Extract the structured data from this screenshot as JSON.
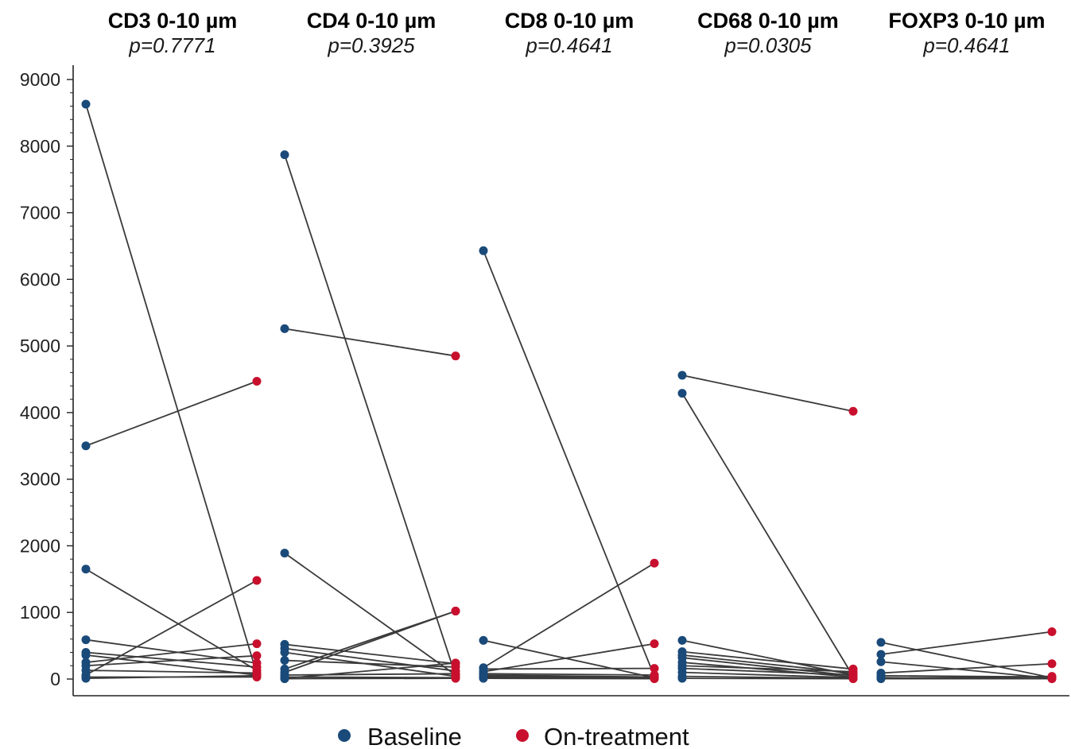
{
  "colors": {
    "baseline": "#1a4a7a",
    "on_treatment": "#c8102e",
    "line": "#3a3a3a",
    "axis": "#222222"
  },
  "chart_data": {
    "type": "paired-line",
    "ylim": [
      0,
      9000
    ],
    "yticks": [
      "0",
      "1000",
      "2000",
      "3000",
      "4000",
      "5000",
      "6000",
      "7000",
      "8000",
      "9000"
    ],
    "grid": false,
    "legend": {
      "position": "bottom-center",
      "entries": [
        {
          "key": "baseline",
          "label": "Baseline"
        },
        {
          "key": "on_treatment",
          "label": "On-treatment"
        }
      ]
    },
    "facets": [
      {
        "title": "CD3 0-10 µm",
        "subtitle": "p=0.7771",
        "pairs": [
          [
            8630,
            80
          ],
          [
            3500,
            4470
          ],
          [
            1650,
            130
          ],
          [
            590,
            240
          ],
          [
            400,
            180
          ],
          [
            360,
            60
          ],
          [
            250,
            530
          ],
          [
            200,
            350
          ],
          [
            130,
            90
          ],
          [
            60,
            1480
          ],
          [
            30,
            30
          ],
          [
            10,
            50
          ]
        ]
      },
      {
        "title": "CD4 0-10 µm",
        "subtitle": "p=0.3925",
        "pairs": [
          [
            7870,
            50
          ],
          [
            5260,
            4850
          ],
          [
            1890,
            60
          ],
          [
            520,
            230
          ],
          [
            460,
            120
          ],
          [
            400,
            40
          ],
          [
            280,
            180
          ],
          [
            150,
            1020
          ],
          [
            100,
            1020
          ],
          [
            60,
            80
          ],
          [
            30,
            20
          ],
          [
            10,
            240
          ],
          [
            5,
            10
          ]
        ]
      },
      {
        "title": "CD8 0-10 µm",
        "subtitle": "p=0.4641",
        "pairs": [
          [
            6430,
            40
          ],
          [
            580,
            20
          ],
          [
            170,
            1740
          ],
          [
            150,
            160
          ],
          [
            110,
            530
          ],
          [
            80,
            60
          ],
          [
            60,
            30
          ],
          [
            40,
            20
          ],
          [
            20,
            10
          ],
          [
            10,
            5
          ]
        ]
      },
      {
        "title": "CD68 0-10 µm",
        "subtitle": "p=0.0305",
        "pairs": [
          [
            4560,
            4020
          ],
          [
            4290,
            40
          ],
          [
            580,
            60
          ],
          [
            410,
            150
          ],
          [
            360,
            90
          ],
          [
            320,
            50
          ],
          [
            250,
            30
          ],
          [
            200,
            110
          ],
          [
            160,
            60
          ],
          [
            100,
            20
          ],
          [
            40,
            10
          ],
          [
            10,
            5
          ]
        ]
      },
      {
        "title": "FOXP3 0-10 µm",
        "subtitle": "p=0.4641",
        "pairs": [
          [
            550,
            20
          ],
          [
            370,
            710
          ],
          [
            260,
            10
          ],
          [
            90,
            230
          ],
          [
            50,
            30
          ],
          [
            20,
            10
          ],
          [
            10,
            40
          ],
          [
            5,
            5
          ]
        ]
      }
    ]
  }
}
